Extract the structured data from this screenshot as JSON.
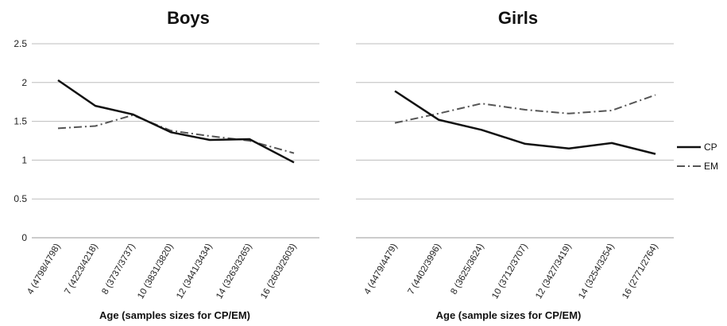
{
  "chart_data": [
    {
      "type": "line",
      "title": "Boys",
      "xlabel": "Age (samples sizes for CP/EM)",
      "ylabel": "",
      "ylim": [
        0,
        2.5
      ],
      "yticks": [
        "0",
        "0.5",
        "1",
        "1.5",
        "2",
        "2.5"
      ],
      "grid": true,
      "categories": [
        "4 (4798/4798)",
        "7 (4223/4218)",
        "8 (3737/3737)",
        "10 (3831/3820)",
        "12 (3441/3434)",
        "14 (3263/3265)",
        "16 (2603/2603)"
      ],
      "series": [
        {
          "name": "CP",
          "values": [
            2.03,
            1.7,
            1.59,
            1.36,
            1.26,
            1.27,
            0.97
          ]
        },
        {
          "name": "EM",
          "values": [
            1.41,
            1.44,
            1.58,
            1.38,
            1.31,
            1.25,
            1.09
          ]
        }
      ]
    },
    {
      "type": "line",
      "title": "Girls",
      "xlabel": "Age (sample sizes for CP/EM)",
      "ylabel": "",
      "ylim": [
        0,
        2.5
      ],
      "grid": true,
      "categories": [
        "4 (4479/4479)",
        "7 (4402/3996)",
        "8 (3625/3624)",
        "10 (3712/3707)",
        "12 (3427/3419)",
        "14 (3254/3254)",
        "16 (2771/2764)"
      ],
      "series": [
        {
          "name": "CP",
          "values": [
            1.89,
            1.52,
            1.39,
            1.21,
            1.15,
            1.22,
            1.08
          ]
        },
        {
          "name": "EM",
          "values": [
            1.48,
            1.6,
            1.73,
            1.65,
            1.6,
            1.64,
            1.84
          ]
        }
      ]
    }
  ],
  "legend": {
    "placement": "right",
    "items": [
      {
        "name": "CP",
        "style": "solid"
      },
      {
        "name": "EM",
        "style": "dash-dot"
      }
    ]
  },
  "colors": {
    "line": "#111111",
    "grid": "#bdbdbd"
  }
}
